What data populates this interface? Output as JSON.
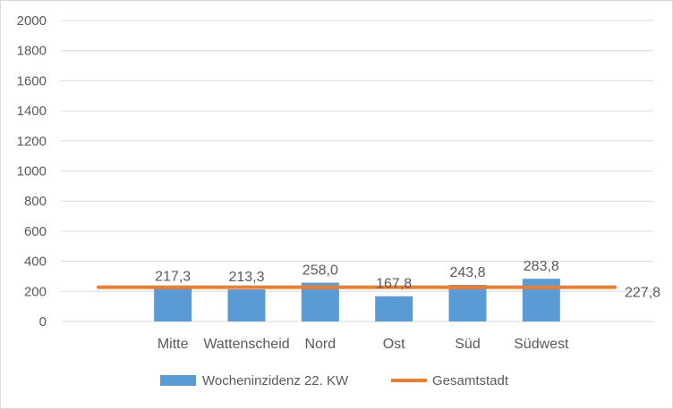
{
  "chart_data": {
    "type": "bar",
    "categories": [
      "Mitte",
      "Wattenscheid",
      "Nord",
      "Ost",
      "Süd",
      "Südwest"
    ],
    "series": [
      {
        "name": "Wocheninzidenz 22. KW",
        "type": "bar",
        "values": [
          217.3,
          213.3,
          258.0,
          167.8,
          243.8,
          283.8
        ],
        "labels": [
          "217,3",
          "213,3",
          "258,0",
          "167,8",
          "243,8",
          "283,8"
        ],
        "color": "#5b9bd5"
      },
      {
        "name": "Gesamtstadt",
        "type": "line",
        "value": 227.8,
        "label": "227,8",
        "color": "#ed7d31"
      }
    ],
    "ylim": [
      0,
      2000
    ],
    "yticks": [
      "0",
      "200",
      "400",
      "600",
      "800",
      "1000",
      "1200",
      "1400",
      "1600",
      "1800",
      "2000"
    ],
    "grid": true,
    "legend_position": "bottom"
  }
}
